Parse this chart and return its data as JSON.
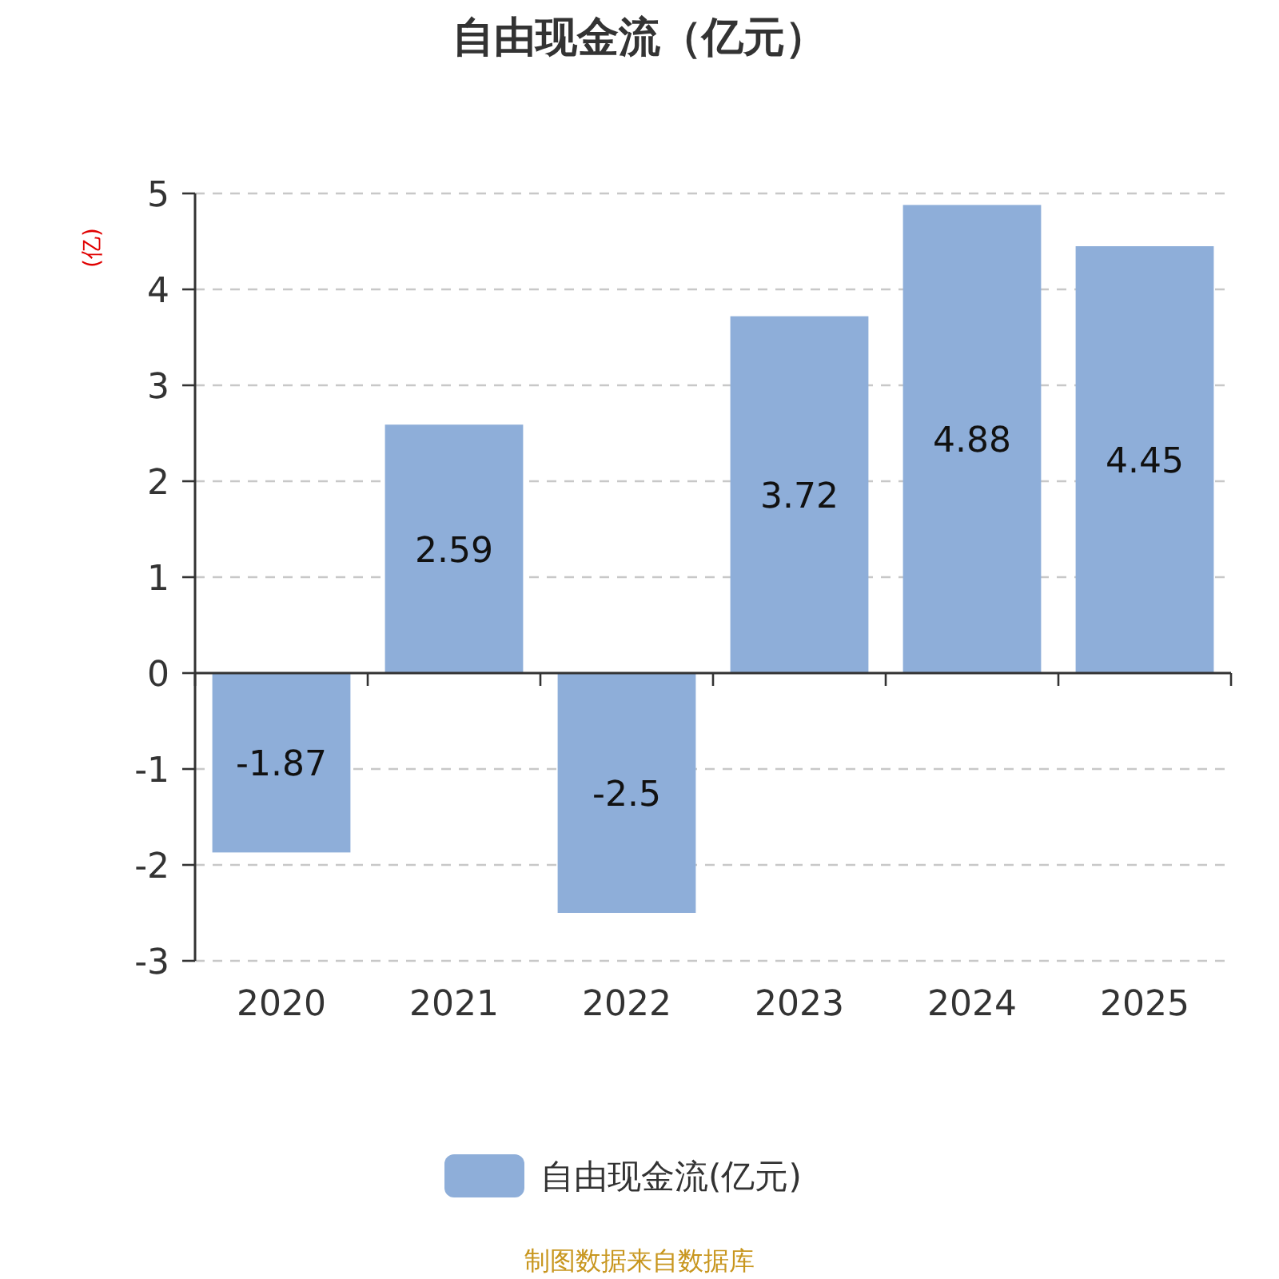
{
  "chart_data": {
    "type": "bar",
    "title": "自由现金流（亿元）",
    "ylabel": "(亿)",
    "categories": [
      "2020",
      "2021",
      "2022",
      "2023",
      "2024",
      "2025"
    ],
    "series": [
      {
        "name": "自由现金流(亿元)",
        "color": "#8eaed9",
        "values": [
          -1.87,
          2.59,
          -2.5,
          3.72,
          4.88,
          4.45
        ]
      }
    ],
    "ylim": [
      -3,
      5
    ],
    "yticks": [
      -3,
      -2,
      -1,
      0,
      1,
      2,
      3,
      4,
      5
    ],
    "grid": "y",
    "legend": "bottom",
    "data_labels": true,
    "annotations": [
      "制图数据来自数据库"
    ]
  }
}
